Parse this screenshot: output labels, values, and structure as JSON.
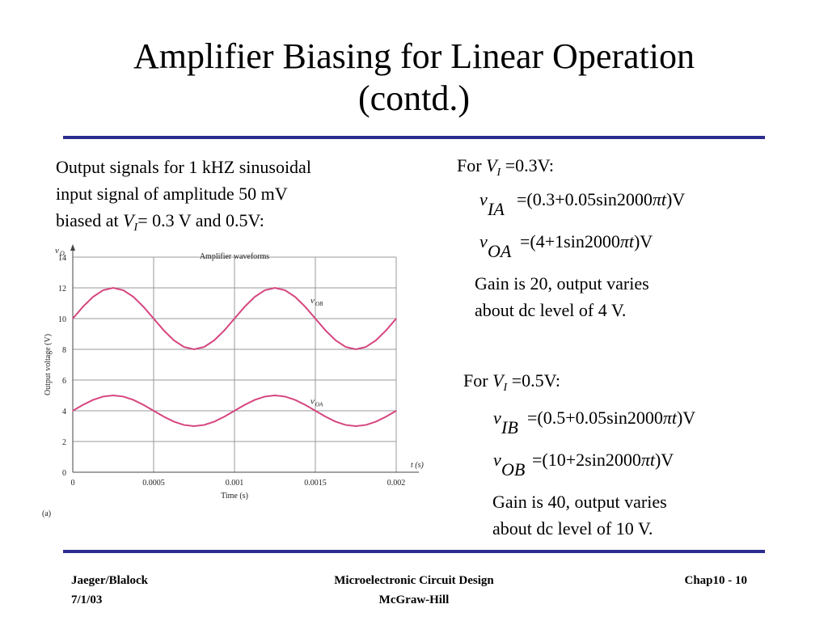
{
  "slide": {
    "title_line1": "Amplifier Biasing for Linear Operation",
    "title_line2": "(contd.)"
  },
  "caption": {
    "line1": "Output signals for 1 kHZ sinusoidal",
    "line2": "input signal of amplitude 50 mV",
    "line3_pre": "biased at ",
    "line3_var": "V",
    "line3_sub": "I",
    "line3_post": "= 0.3 V and 0.5V:"
  },
  "chart_data": {
    "type": "line",
    "title": "Amplifier waveforms",
    "xlabel": "Time (s)",
    "ylabel": "Output voltage (V)",
    "x_axis_symbol": "t (s)",
    "y_axis_symbol_main": "v",
    "y_axis_symbol_sub": "O",
    "panel_label": "(a)",
    "xlim": [
      0,
      0.002
    ],
    "ylim": [
      0,
      14
    ],
    "x_ticks": [
      "0",
      "0.0005",
      "0.001",
      "0.0015",
      "0.002"
    ],
    "y_ticks": [
      "0",
      "2",
      "4",
      "6",
      "8",
      "10",
      "12",
      "14"
    ],
    "grid": true,
    "line_color": "#d6457f",
    "x": [
      0,
      6.25e-05,
      0.000125,
      0.0001875,
      0.00025,
      0.0003125,
      0.000375,
      0.0004375,
      0.0005,
      0.0005625,
      0.000625,
      0.0006875,
      0.00075,
      0.0008125,
      0.000875,
      0.0009375,
      0.001,
      0.0010625,
      0.001125,
      0.0011875,
      0.00125,
      0.0013125,
      0.001375,
      0.0014375,
      0.0015,
      0.0015625,
      0.001625,
      0.0016875,
      0.00175,
      0.0018125,
      0.001875,
      0.0019375,
      0.002
    ],
    "series": [
      {
        "name_main": "v",
        "name_sub": "OB",
        "values": [
          10,
          10.765,
          11.414,
          11.848,
          12,
          11.848,
          11.414,
          10.765,
          10,
          9.235,
          8.586,
          8.152,
          8,
          8.152,
          8.586,
          9.235,
          10,
          10.765,
          11.414,
          11.848,
          12,
          11.848,
          11.414,
          10.765,
          10,
          9.235,
          8.586,
          8.152,
          8,
          8.152,
          8.586,
          9.235,
          10
        ]
      },
      {
        "name_main": "v",
        "name_sub": "OA",
        "values": [
          4,
          4.383,
          4.707,
          4.924,
          5,
          4.924,
          4.707,
          4.383,
          4,
          3.617,
          3.293,
          3.076,
          3,
          3.076,
          3.293,
          3.617,
          4,
          4.383,
          4.707,
          4.924,
          5,
          4.924,
          4.707,
          4.383,
          4,
          3.617,
          3.293,
          3.076,
          3,
          3.076,
          3.293,
          3.617,
          4
        ]
      }
    ]
  },
  "right": {
    "case1": {
      "for_pre": "For ",
      "for_var": "V",
      "for_sub": "I",
      "for_post": " =0.3V:",
      "eq1_v": "v",
      "eq1_sub": "IA",
      "eq1_rhs_a": "=(0.3+0.05sin2000",
      "eq1_rhs_pi": "π",
      "eq1_rhs_t": "t",
      "eq1_rhs_b": ")V",
      "eq2_v": "v",
      "eq2_sub": "OA",
      "eq2_rhs_a": "=(4+1sin2000",
      "eq2_rhs_pi": "π",
      "eq2_rhs_t": "t",
      "eq2_rhs_b": ")V",
      "gain_line1": "Gain is 20, output varies",
      "gain_line2": "about dc level of 4 V."
    },
    "case2": {
      "for_pre": "For ",
      "for_var": "V",
      "for_sub": "I",
      "for_post": " =0.5V:",
      "eq1_v": "v",
      "eq1_sub": "IB",
      "eq1_rhs_a": "=(0.5+0.05sin2000",
      "eq1_rhs_pi": "π",
      "eq1_rhs_t": "t",
      "eq1_rhs_b": ")V",
      "eq2_v": "v",
      "eq2_sub": "OB",
      "eq2_rhs_a": "=(10+2sin2000",
      "eq2_rhs_pi": "π",
      "eq2_rhs_t": "t",
      "eq2_rhs_b": ")V",
      "gain_line1": "Gain is 40, output varies",
      "gain_line2": "about dc level of 10 V."
    }
  },
  "footer": {
    "authors": "Jaeger/Blalock",
    "date": "7/1/03",
    "book": "Microelectronic Circuit Design",
    "publisher": "McGraw-Hill",
    "page": "Chap10 - 10"
  },
  "colors": {
    "rule": "#2b2c8f",
    "curve": "#d6457f"
  }
}
